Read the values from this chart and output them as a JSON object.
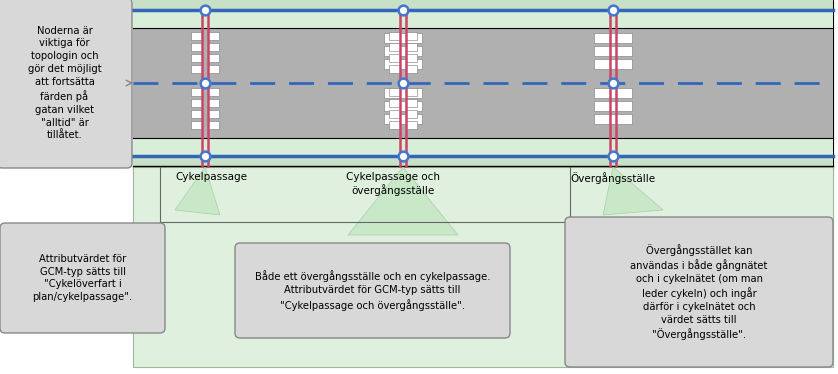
{
  "bg_color": "#ffffff",
  "road_outer_bg": "#e8f5e8",
  "road_gray": "#b0b0b0",
  "road_gray2": "#c0c0c0",
  "green_strip": "#c8e0c8",
  "green_light": "#d8eed8",
  "blue_line": "#3366bb",
  "pink_line": "#cc4466",
  "node_fill": "#ffffff",
  "node_edge": "#4477cc",
  "bubble_fill": "#d8d8d8",
  "bubble_edge": "#888888",
  "lower_bg": "#dff0df",
  "lower_edge": "#99bb99",
  "white": "#ffffff",
  "label_cp": "Cykelpassage",
  "label_cpo": "Cykelpassage och\növergångsställe",
  "label_ov": "Övergångsställe",
  "b1": "Noderna är\nviktiga för\ntopologin och\ngör det möjligt\natt fortsätta\nfärden på\ngatan vilket\n\"alltid\" är\ntillåtet.",
  "b2": "Attributvärdet för\nGCM-typ sätts till\n\"Cykelöverfart i\nplan/cykelpassage\".",
  "b3": "Både ett övergångsställe och en cykelpassage.\nAttributvärdet för GCM-typ sätts till\n\"Cykelpassage och övergångsställe\".",
  "b4": "Övergångsstället kan\nanvändas i både gångnätet\noch i cykelnätet (om man\nleder cykeln) och ingår\ndärför i cykelnätet och\nvärdet sätts till\n\"Övergångsställe\"."
}
